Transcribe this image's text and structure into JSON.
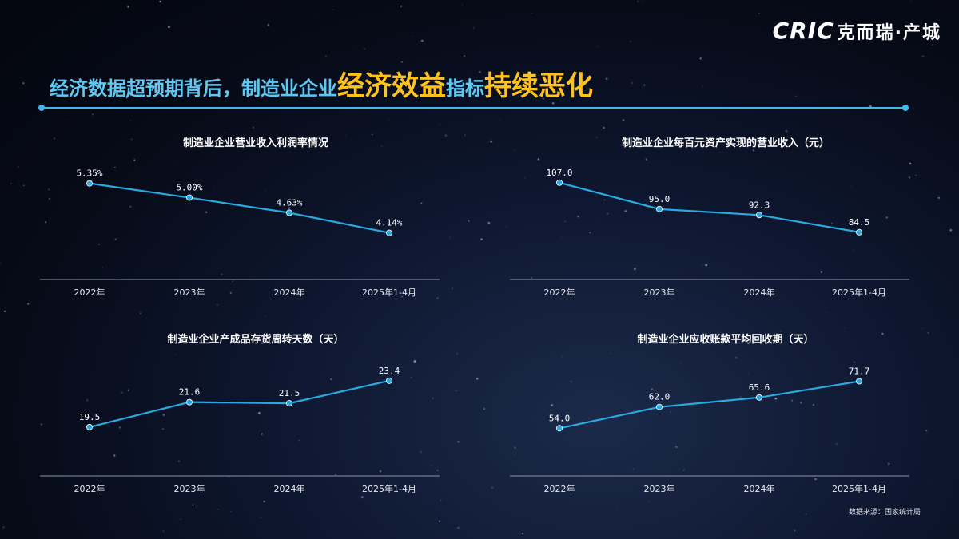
{
  "brand": {
    "mark": "CRIC",
    "cn": "克而瑞·产城"
  },
  "headline": {
    "part1": "经济数据超预期背后，制造业企业",
    "part2": "经济效益",
    "part3": "指标",
    "part4": "持续恶化"
  },
  "source_note": "数据来源：国家统计局",
  "colors": {
    "line": "#2aa8e0",
    "accent": "#ffc21a",
    "title_blue": "#5ec8f2",
    "axis": "#8a93a6"
  },
  "chart_data": [
    {
      "type": "line",
      "title": "制造业企业营业收入利润率情况",
      "categories": [
        "2022年",
        "2023年",
        "2024年",
        "2025年1-4月"
      ],
      "values": [
        5.35,
        5.0,
        4.63,
        4.14
      ],
      "value_labels": [
        "5.35%",
        "5.00%",
        "4.63%",
        "4.14%"
      ],
      "ylim": [
        3.0,
        5.85
      ]
    },
    {
      "type": "line",
      "title": "制造业企业每百元资产实现的营业收入（元）",
      "categories": [
        "2022年",
        "2023年",
        "2024年",
        "2025年1-4月"
      ],
      "values": [
        107.0,
        95.0,
        92.3,
        84.5
      ],
      "value_labels": [
        "107.0",
        "95.0",
        "92.3",
        "84.5"
      ],
      "ylim": [
        63,
        116
      ]
    },
    {
      "type": "line",
      "title": "制造业企业产成品存货周转天数（天）",
      "categories": [
        "2022年",
        "2023年",
        "2024年",
        "2025年1-4月"
      ],
      "values": [
        19.5,
        21.6,
        21.5,
        23.4
      ],
      "value_labels": [
        "19.5",
        "21.6",
        "21.5",
        "23.4"
      ],
      "ylim": [
        15.4,
        25.2
      ]
    },
    {
      "type": "line",
      "title": "制造业企业应收账款平均回收期（天）",
      "categories": [
        "2022年",
        "2023年",
        "2024年",
        "2025年1-4月"
      ],
      "values": [
        54.0,
        62.0,
        65.6,
        71.7
      ],
      "value_labels": [
        "54.0",
        "62.0",
        "65.6",
        "71.7"
      ],
      "ylim": [
        36,
        80
      ]
    }
  ]
}
